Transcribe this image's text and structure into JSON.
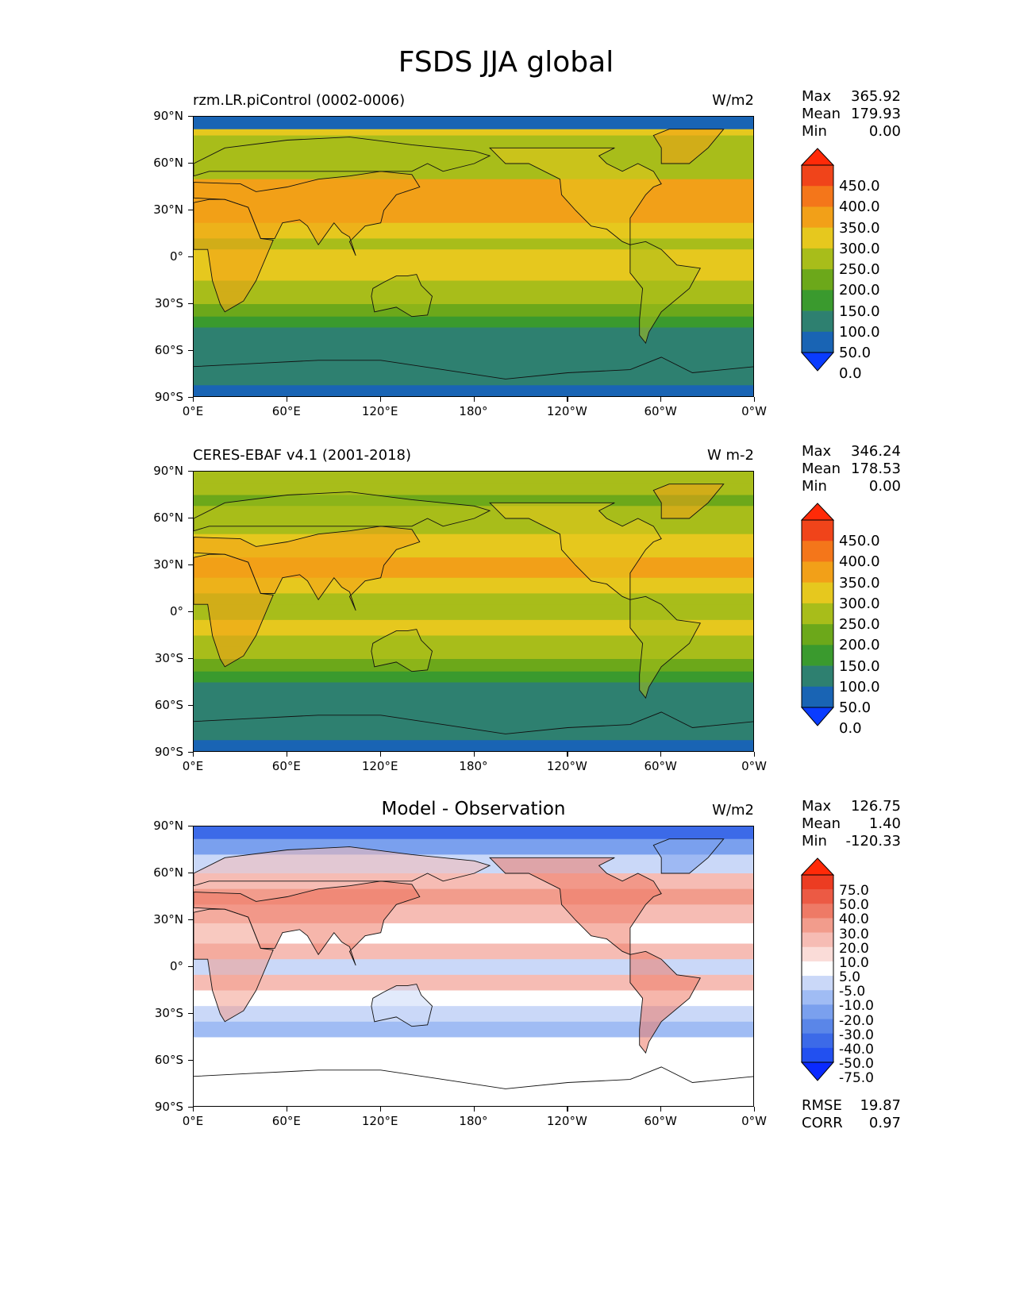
{
  "figure_title": "FSDS JJA global",
  "x_ticks": [
    "0°E",
    "60°E",
    "120°E",
    "180°",
    "120°W",
    "60°W",
    "0°W"
  ],
  "y_ticks": [
    "90°N",
    "60°N",
    "30°N",
    "0°",
    "30°S",
    "60°S",
    "90°S"
  ],
  "panels": [
    {
      "title": "rzm.LR.piControl (0002-0006)",
      "units": "W/m2",
      "stats": [
        {
          "label": "Max",
          "value": "365.92"
        },
        {
          "label": "Mean",
          "value": "179.93"
        },
        {
          "label": "Min",
          "value": "0.00"
        }
      ],
      "colorbar_labels": [
        "450.0",
        "400.0",
        "350.0",
        "300.0",
        "250.0",
        "200.0",
        "150.0",
        "100.0",
        "50.0",
        "0.0"
      ]
    },
    {
      "title": "CERES-EBAF v4.1 (2001-2018)",
      "units": "W m-2",
      "stats": [
        {
          "label": "Max",
          "value": "346.24"
        },
        {
          "label": "Mean",
          "value": "178.53"
        },
        {
          "label": "Min",
          "value": "0.00"
        }
      ],
      "colorbar_labels": [
        "450.0",
        "400.0",
        "350.0",
        "300.0",
        "250.0",
        "200.0",
        "150.0",
        "100.0",
        "50.0",
        "0.0"
      ]
    },
    {
      "title": "Model - Observation",
      "units": "W/m2",
      "stats": [
        {
          "label": "Max",
          "value": "126.75"
        },
        {
          "label": "Mean",
          "value": "1.40"
        },
        {
          "label": "Min",
          "value": "-120.33"
        }
      ],
      "colorbar_labels": [
        "75.0",
        "50.0",
        "40.0",
        "30.0",
        "20.0",
        "10.0",
        "5.0",
        "-5.0",
        "-10.0",
        "-20.0",
        "-30.0",
        "-40.0",
        "-50.0",
        "-75.0"
      ],
      "extra_stats": [
        {
          "label": "RMSE",
          "value": "19.87"
        },
        {
          "label": "CORR",
          "value": "0.97"
        }
      ]
    }
  ],
  "chart_data": [
    {
      "type": "heatmap",
      "title": "rzm.LR.piControl (0002-0006)",
      "units": "W/m2",
      "xlim": [
        0,
        360
      ],
      "ylim": [
        -90,
        90
      ],
      "levels": [
        0,
        50,
        100,
        150,
        200,
        250,
        300,
        350,
        400,
        450
      ],
      "colors": [
        "#0a3cff",
        "#1964b4",
        "#2e8070",
        "#3a9a2e",
        "#6ca81a",
        "#a8bd1a",
        "#e6c81e",
        "#f2a018",
        "#f4761a",
        "#f0441a",
        "#ff2a08"
      ],
      "stats": {
        "max": 365.92,
        "mean": 179.93,
        "min": 0.0
      }
    },
    {
      "type": "heatmap",
      "title": "CERES-EBAF v4.1 (2001-2018)",
      "units": "W m-2",
      "xlim": [
        0,
        360
      ],
      "ylim": [
        -90,
        90
      ],
      "levels": [
        0,
        50,
        100,
        150,
        200,
        250,
        300,
        350,
        400,
        450
      ],
      "colors": [
        "#0a3cff",
        "#1964b4",
        "#2e8070",
        "#3a9a2e",
        "#6ca81a",
        "#a8bd1a",
        "#e6c81e",
        "#f2a018",
        "#f4761a",
        "#f0441a",
        "#ff2a08"
      ],
      "stats": {
        "max": 346.24,
        "mean": 178.53,
        "min": 0.0
      }
    },
    {
      "type": "heatmap",
      "title": "Model - Observation",
      "units": "W/m2",
      "xlim": [
        0,
        360
      ],
      "ylim": [
        -90,
        90
      ],
      "levels": [
        -75,
        -50,
        -40,
        -30,
        -20,
        -10,
        -5,
        5,
        10,
        20,
        30,
        40,
        50,
        75
      ],
      "colors": [
        "#0a2aff",
        "#2250f0",
        "#3c6ae8",
        "#5a86e8",
        "#7aa0ee",
        "#a0bcf4",
        "#cad8f8",
        "#ffffff",
        "#fadcd8",
        "#f6bcb4",
        "#f29c8c",
        "#ee7a66",
        "#ec5a44",
        "#ec3c22",
        "#ff2a08"
      ],
      "stats": {
        "max": 126.75,
        "mean": 1.4,
        "min": -120.33,
        "rmse": 19.87,
        "corr": 0.97
      }
    }
  ]
}
